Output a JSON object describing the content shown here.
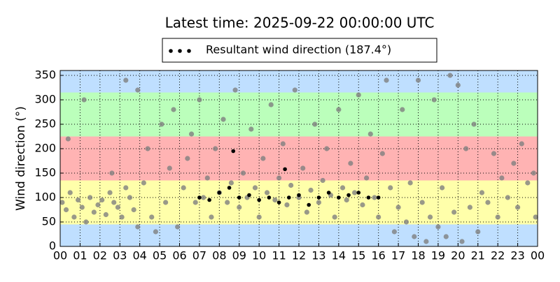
{
  "chart_data": {
    "type": "scatter",
    "title": "Latest time: 2025-09-22 00:00:00 UTC",
    "y_label": "Wind direction (°)",
    "xlim": [
      0,
      24
    ],
    "ylim": [
      0,
      360
    ],
    "yticks": [
      0,
      50,
      100,
      150,
      200,
      250,
      300,
      350
    ],
    "xticks": [
      {
        "value": 0,
        "label": "00"
      },
      {
        "value": 1,
        "label": "01"
      },
      {
        "value": 2,
        "label": "02"
      },
      {
        "value": 3,
        "label": "03"
      },
      {
        "value": 4,
        "label": "04"
      },
      {
        "value": 5,
        "label": "05"
      },
      {
        "value": 6,
        "label": "06"
      },
      {
        "value": 7,
        "label": "07"
      },
      {
        "value": 8,
        "label": "08"
      },
      {
        "value": 9,
        "label": "09"
      },
      {
        "value": 10,
        "label": "10"
      },
      {
        "value": 11,
        "label": "11"
      },
      {
        "value": 12,
        "label": "12"
      },
      {
        "value": 13,
        "label": "13"
      },
      {
        "value": 14,
        "label": "14"
      },
      {
        "value": 15,
        "label": "15"
      },
      {
        "value": 16,
        "label": "16"
      },
      {
        "value": 17,
        "label": "17"
      },
      {
        "value": 18,
        "label": "18"
      },
      {
        "value": 19,
        "label": "19"
      },
      {
        "value": 20,
        "label": "20"
      },
      {
        "value": 21,
        "label": "21"
      },
      {
        "value": 22,
        "label": "22"
      },
      {
        "value": 23,
        "label": "23"
      },
      {
        "value": 24,
        "label": "00"
      }
    ],
    "grid": true,
    "legend": "top",
    "bands": [
      {
        "from": 0,
        "to": 45,
        "color": "#bfdfff"
      },
      {
        "from": 45,
        "to": 135,
        "color": "#ffffaa"
      },
      {
        "from": 135,
        "to": 225,
        "color": "#ffb3b3"
      },
      {
        "from": 225,
        "to": 315,
        "color": "#bbffbb"
      },
      {
        "from": 315,
        "to": 360,
        "color": "#bfdfff"
      }
    ],
    "series": [
      {
        "color": "#7f7f7f",
        "x": [
          0.1,
          0.3,
          0.5,
          0.7,
          0.9,
          1.1,
          1.3,
          1.5,
          1.7,
          1.9,
          2.1,
          2.3,
          2.5,
          2.7,
          2.9,
          3.1,
          3.3,
          3.5,
          3.7,
          3.9,
          0.4,
          1.2,
          2.6,
          3.3,
          3.9,
          4.2,
          4.4,
          4.6,
          4.8,
          5.1,
          5.3,
          5.5,
          5.7,
          5.9,
          6.2,
          6.4,
          6.6,
          6.8,
          7.0,
          7.2,
          7.4,
          7.6,
          7.8,
          8.0,
          8.2,
          8.4,
          8.6,
          8.8,
          9.0,
          9.2,
          9.4,
          9.6,
          9.8,
          10.0,
          10.2,
          10.4,
          10.6,
          10.8,
          11.0,
          11.2,
          11.4,
          11.6,
          11.8,
          12.0,
          12.2,
          12.4,
          12.6,
          12.8,
          13.0,
          13.2,
          13.4,
          13.6,
          13.8,
          14.0,
          14.2,
          14.4,
          14.6,
          14.8,
          15.0,
          15.2,
          15.4,
          15.6,
          15.8,
          16.0,
          16.2,
          16.4,
          16.6,
          16.8,
          17.0,
          17.2,
          17.4,
          17.6,
          17.8,
          18.0,
          18.2,
          18.4,
          18.6,
          18.8,
          19.0,
          19.2,
          19.4,
          19.6,
          19.8,
          20.0,
          20.2,
          20.4,
          20.6,
          20.8,
          21.0,
          21.2,
          21.5,
          21.8,
          22.0,
          22.2,
          22.5,
          22.8,
          23.0,
          23.2,
          23.5,
          23.8,
          23.9
        ],
        "values": [
          90,
          75,
          110,
          60,
          95,
          80,
          50,
          100,
          70,
          85,
          95,
          65,
          110,
          90,
          80,
          60,
          120,
          100,
          75,
          40,
          220,
          300,
          150,
          340,
          320,
          130,
          200,
          60,
          30,
          250,
          90,
          160,
          280,
          40,
          120,
          180,
          230,
          90,
          300,
          100,
          140,
          60,
          200,
          110,
          260,
          90,
          130,
          320,
          80,
          150,
          100,
          240,
          120,
          60,
          180,
          110,
          290,
          95,
          140,
          210,
          85,
          125,
          320,
          100,
          160,
          70,
          115,
          250,
          90,
          135,
          200,
          105,
          60,
          280,
          120,
          95,
          170,
          110,
          310,
          85,
          140,
          230,
          100,
          60,
          190,
          340,
          120,
          30,
          80,
          280,
          50,
          130,
          20,
          340,
          90,
          10,
          60,
          300,
          40,
          120,
          20,
          350,
          70,
          330,
          10,
          200,
          80,
          250,
          30,
          110,
          90,
          190,
          60,
          140,
          100,
          170,
          80,
          210,
          130,
          150,
          60
        ]
      },
      {
        "name": "Resultant wind direction (187.4°)",
        "color": "#000000",
        "x": [
          7.0,
          7.5,
          8.0,
          8.5,
          8.7,
          9.0,
          9.5,
          10.0,
          10.5,
          11.0,
          11.3,
          11.5,
          12.0,
          12.5,
          13.0,
          13.5,
          14.0,
          14.5,
          15.0,
          15.5,
          16.0
        ],
        "values": [
          100,
          95,
          110,
          120,
          195,
          100,
          105,
          95,
          100,
          90,
          158,
          100,
          105,
          85,
          100,
          110,
          100,
          105,
          110,
          100,
          100
        ]
      }
    ]
  }
}
